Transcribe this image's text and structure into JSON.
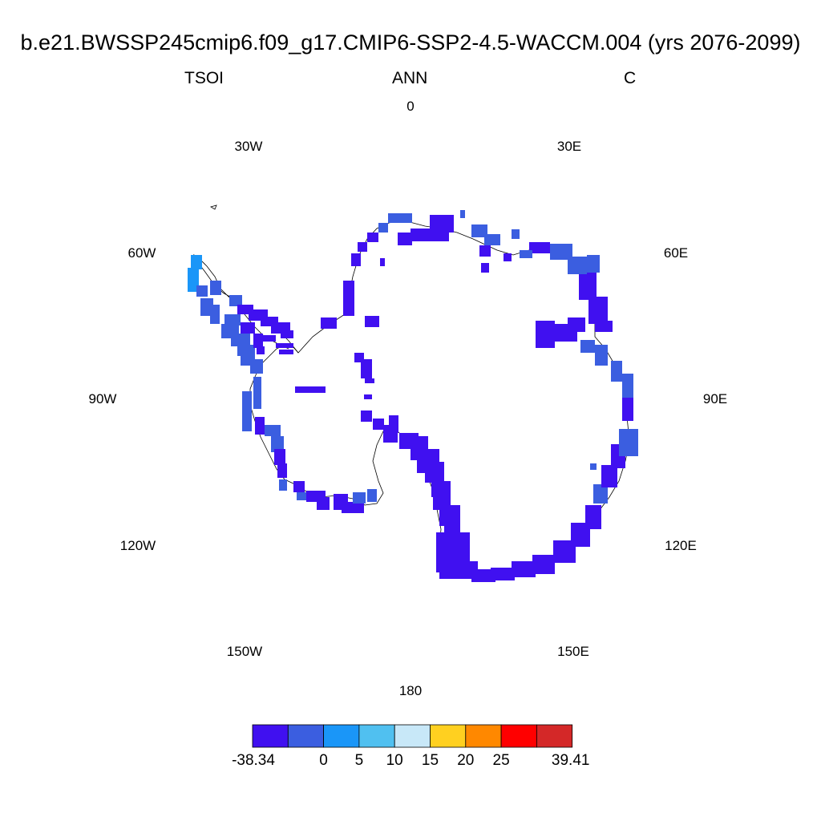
{
  "title": "b.e21.BWSSP245cmip6.f09_g17.CMIP6-SSP2-4.5-WACCM.004 (yrs 2076-2099)",
  "left_subtitle": "TSOI",
  "center_subtitle": "ANN",
  "right_subtitle": "C",
  "longitude_labels": [
    "0",
    "30E",
    "60E",
    "90E",
    "120E",
    "150E",
    "180",
    "150W",
    "120W",
    "90W",
    "60W",
    "30W"
  ],
  "colorbar": {
    "colors": [
      "#4010f0",
      "#3b5ee0",
      "#1a96f8",
      "#50c0f0",
      "#c8e8f8",
      "#ffd020",
      "#ff8800",
      "#ff0000",
      "#d42828"
    ],
    "labels": [
      "-38.34",
      "0",
      "5",
      "10",
      "15",
      "20",
      "25",
      "39.41"
    ],
    "min": -38.34,
    "max": 39.41,
    "levels": [
      0,
      5,
      10,
      15,
      20,
      25
    ]
  }
}
